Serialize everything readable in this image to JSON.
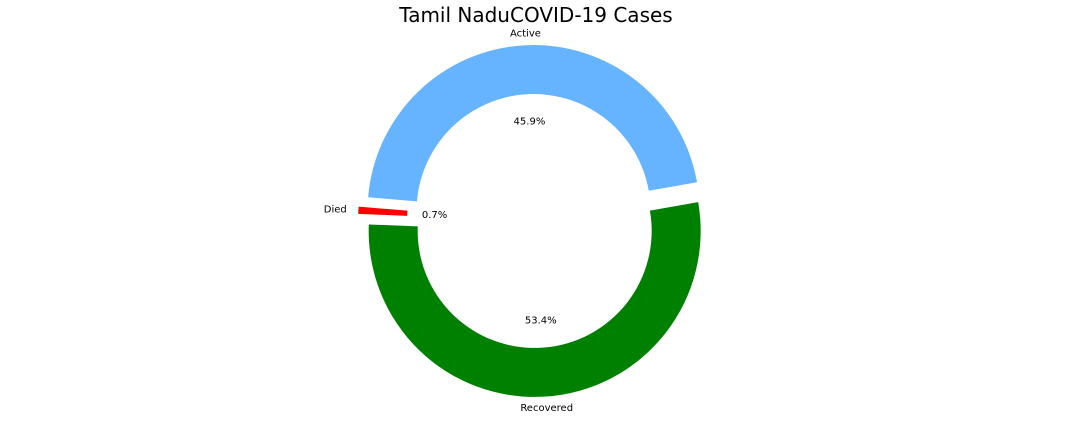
{
  "chart_data": {
    "type": "pie",
    "variant": "donut",
    "title": "Tamil NaduCOVID-19 Cases",
    "categories": [
      "Active",
      "Died",
      "Recovered"
    ],
    "values": [
      45.9,
      0.7,
      53.4
    ],
    "value_labels": [
      "45.9%",
      "0.7%",
      "53.4%"
    ],
    "colors": [
      "#66b3ff",
      "#ff0000",
      "#008000"
    ],
    "exploded": [
      true,
      true,
      true
    ],
    "start_angle_deg": 10,
    "direction": "counterclockwise",
    "background": "#ffffff"
  }
}
